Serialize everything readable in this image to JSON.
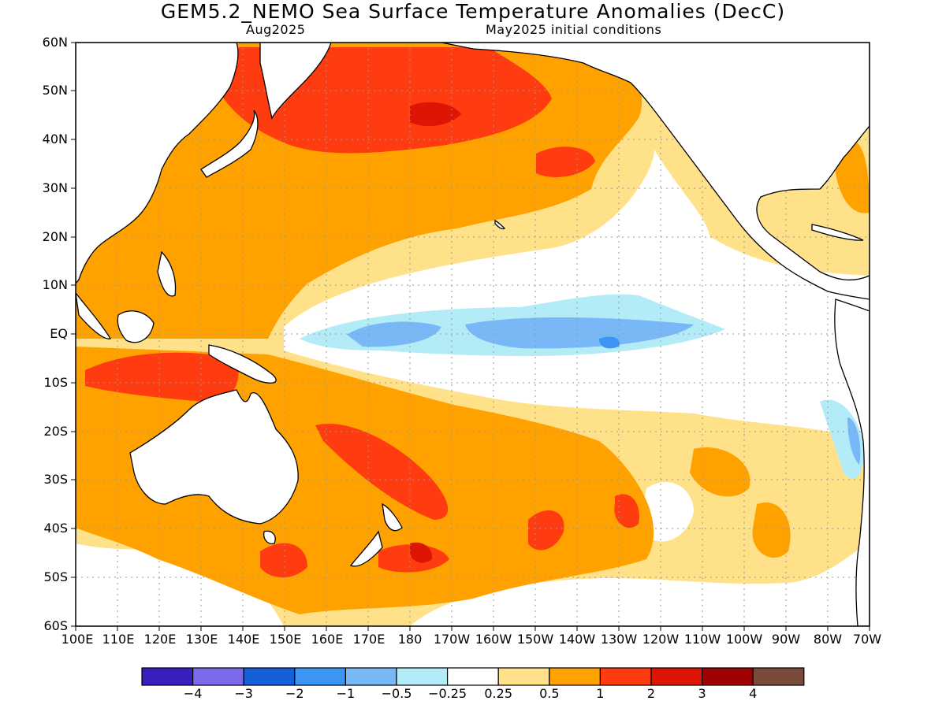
{
  "title": "GEM5.2_NEMO Sea Surface Temperature Anomalies (DecC)",
  "subtitle_left": "Aug2025",
  "subtitle_right": "May2025 initial conditions",
  "lat_ticks": [
    "60N",
    "50N",
    "40N",
    "30N",
    "20N",
    "10N",
    "EQ",
    "10S",
    "20S",
    "30S",
    "40S",
    "50S",
    "60S"
  ],
  "lon_ticks": [
    "100E",
    "110E",
    "120E",
    "130E",
    "140E",
    "150E",
    "160E",
    "170E",
    "180",
    "170W",
    "160W",
    "150W",
    "140W",
    "130W",
    "120W",
    "110W",
    "100W",
    "90W",
    "80W",
    "70W"
  ],
  "colorbar": {
    "colors": [
      "#3a1fbf",
      "#7b6aea",
      "#1560d8",
      "#3c95f5",
      "#78b8f6",
      "#b3ecf7",
      "#ffffff",
      "#ffe18a",
      "#ffa200",
      "#ff3c0f",
      "#de1405",
      "#a00204",
      "#7a4a3a"
    ],
    "labels": [
      "−4",
      "−3",
      "−2",
      "−1",
      "−0.5",
      "−0.25",
      "0.25",
      "0.5",
      "1",
      "2",
      "3",
      "4"
    ]
  },
  "palette": {
    "pale_yellow": "#ffe18a",
    "orange": "#ffa200",
    "red_orange": "#ff3c0f",
    "red": "#de1405",
    "dark_red": "#a00204",
    "light_cyan": "#b3ecf7",
    "light_blue": "#78b8f6",
    "mid_blue": "#3c95f5"
  }
}
